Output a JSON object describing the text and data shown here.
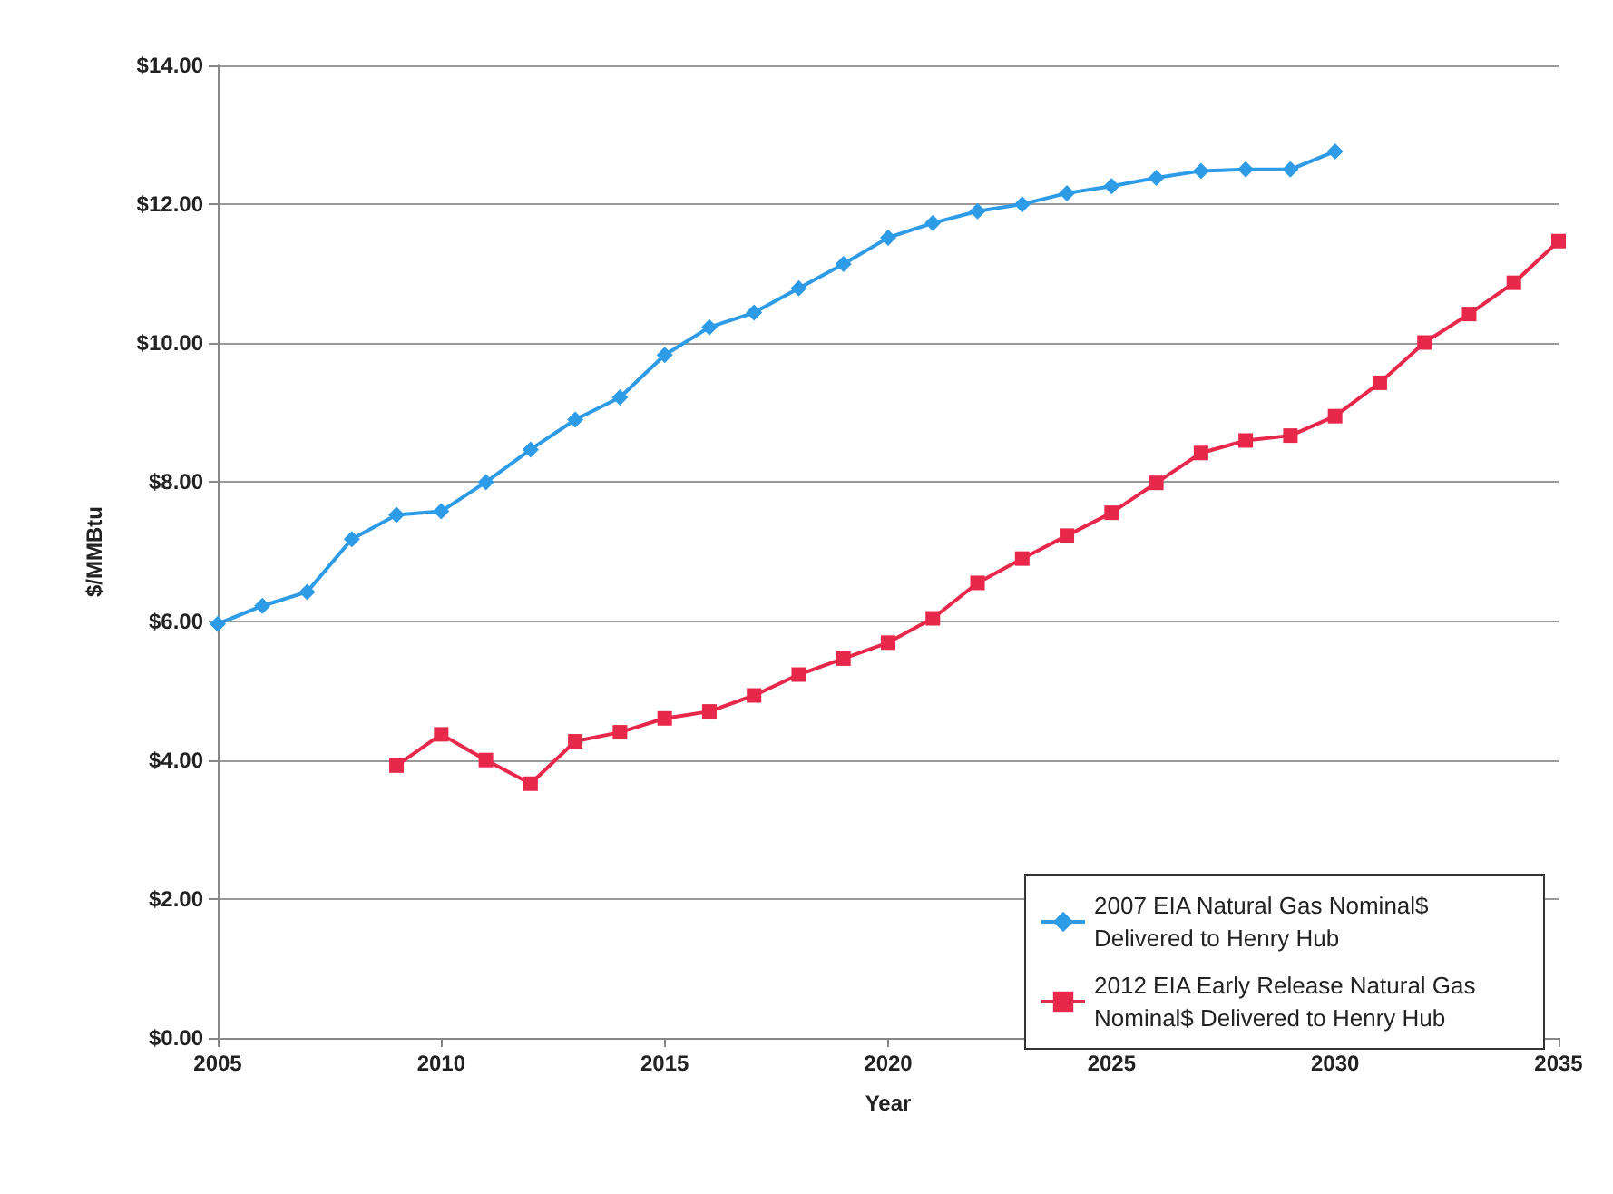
{
  "chart_data": {
    "type": "line",
    "xlabel": "Year",
    "ylabel": "$/MMBtu",
    "xlim": [
      2005,
      2035
    ],
    "xticks": [
      2005,
      2010,
      2015,
      2020,
      2025,
      2030,
      2035
    ],
    "ylim": [
      0,
      14
    ],
    "yticks": [
      {
        "value": 0,
        "label": "$0.00"
      },
      {
        "value": 2,
        "label": "$2.00"
      },
      {
        "value": 4,
        "label": "$4.00"
      },
      {
        "value": 6,
        "label": "$6.00"
      },
      {
        "value": 8,
        "label": "$8.00"
      },
      {
        "value": 10,
        "label": "$10.00"
      },
      {
        "value": 12,
        "label": "$12.00"
      },
      {
        "value": 14,
        "label": "$14.00"
      }
    ],
    "grid": "y",
    "legend": "bottom right",
    "line_style": "solid",
    "series": [
      {
        "name": "2007 EIA Natural Gas Nominal$ Delivered to Henry Hub",
        "color": "#2e9be6",
        "marker": "diamond",
        "x": [
          2005,
          2006,
          2007,
          2008,
          2009,
          2010,
          2011,
          2012,
          2013,
          2014,
          2015,
          2016,
          2017,
          2018,
          2019,
          2020,
          2021,
          2022,
          2023,
          2024,
          2025,
          2026,
          2027,
          2028,
          2029,
          2030
        ],
        "values": [
          5.96,
          6.22,
          6.42,
          7.18,
          7.53,
          7.58,
          8.0,
          8.47,
          8.9,
          9.22,
          9.83,
          10.23,
          10.44,
          10.79,
          11.14,
          11.52,
          11.73,
          11.9,
          12.0,
          12.16,
          12.26,
          12.38,
          12.48,
          12.5,
          12.5,
          12.76
        ]
      },
      {
        "name": "2012 EIA Early Release Natural Gas Nominal$ Delivered to Henry Hub",
        "color": "#e8284a",
        "marker": "square",
        "x": [
          2009,
          2010,
          2011,
          2012,
          2013,
          2014,
          2015,
          2016,
          2017,
          2018,
          2019,
          2020,
          2021,
          2022,
          2023,
          2024,
          2025,
          2026,
          2027,
          2028,
          2029,
          2030,
          2031,
          2032,
          2033,
          2034,
          2035
        ],
        "values": [
          3.92,
          4.37,
          4.0,
          3.66,
          4.27,
          4.4,
          4.6,
          4.7,
          4.93,
          5.23,
          5.46,
          5.69,
          6.04,
          6.55,
          6.9,
          7.23,
          7.56,
          7.99,
          8.42,
          8.6,
          8.67,
          8.95,
          9.43,
          10.01,
          10.42,
          10.87,
          11.47
        ]
      }
    ]
  }
}
